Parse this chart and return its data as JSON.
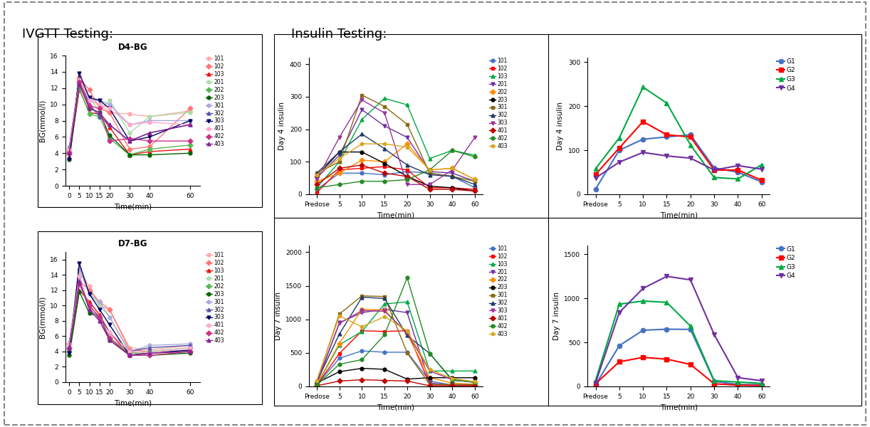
{
  "ivgtt_timepoints": [
    0,
    5,
    10,
    15,
    20,
    30,
    40,
    60
  ],
  "insulin_timepoints_labels": [
    "Predose",
    "5",
    "10",
    "15",
    "20",
    "30",
    "40",
    "60"
  ],
  "insulin_timepoints": [
    0,
    1,
    2,
    3,
    4,
    5,
    6,
    7
  ],
  "d4_bg": {
    "101": [
      3.8,
      13.5,
      10.5,
      10.0,
      9.0,
      8.8,
      8.5,
      9.2
    ],
    "102": [
      4.2,
      13.2,
      11.8,
      9.5,
      9.0,
      4.5,
      4.8,
      9.5
    ],
    "103": [
      3.5,
      11.8,
      9.0,
      8.8,
      7.2,
      3.8,
      4.2,
      4.5
    ],
    "201": [
      4.5,
      12.2,
      10.8,
      9.2,
      10.5,
      6.5,
      8.5,
      9.0
    ],
    "202": [
      4.0,
      12.0,
      8.8,
      8.5,
      5.8,
      3.8,
      4.5,
      5.0
    ],
    "203": [
      3.2,
      12.5,
      9.5,
      9.0,
      6.2,
      3.8,
      3.8,
      4.0
    ],
    "301": [
      4.5,
      13.0,
      10.5,
      10.5,
      10.0,
      7.5,
      8.0,
      8.0
    ],
    "302": [
      4.8,
      13.2,
      10.0,
      8.5,
      7.5,
      5.5,
      6.5,
      7.5
    ],
    "303": [
      3.2,
      13.8,
      10.8,
      10.5,
      9.5,
      5.5,
      6.0,
      8.0
    ],
    "401": [
      4.5,
      13.0,
      10.5,
      10.0,
      9.5,
      7.5,
      7.8,
      7.5
    ],
    "402": [
      4.0,
      12.8,
      9.8,
      9.5,
      5.5,
      5.8,
      5.5,
      5.5
    ],
    "403": [
      4.0,
      12.5,
      9.5,
      9.0,
      7.5,
      5.5,
      6.5,
      7.5
    ]
  },
  "d7_bg": {
    "101": [
      4.2,
      14.5,
      12.5,
      10.0,
      9.5,
      4.5,
      4.2,
      4.8
    ],
    "102": [
      5.0,
      13.2,
      12.0,
      10.5,
      9.5,
      4.2,
      4.0,
      4.5
    ],
    "103": [
      4.2,
      12.0,
      10.5,
      8.8,
      6.5,
      3.5,
      3.8,
      4.0
    ],
    "201": [
      4.8,
      14.8,
      11.5,
      10.0,
      8.5,
      3.8,
      4.0,
      4.5
    ],
    "202": [
      4.0,
      13.0,
      9.5,
      8.5,
      5.8,
      3.8,
      3.8,
      4.0
    ],
    "203": [
      3.5,
      11.8,
      9.0,
      8.5,
      5.5,
      3.5,
      3.5,
      3.8
    ],
    "301": [
      5.0,
      14.8,
      11.5,
      10.5,
      8.5,
      4.0,
      4.8,
      5.0
    ],
    "302": [
      5.2,
      13.8,
      9.5,
      8.5,
      6.5,
      4.0,
      4.5,
      4.8
    ],
    "303": [
      3.8,
      15.5,
      11.5,
      9.5,
      7.5,
      3.5,
      3.8,
      4.2
    ],
    "401": [
      5.0,
      13.8,
      9.8,
      8.0,
      6.5,
      4.0,
      3.8,
      4.5
    ],
    "402": [
      4.5,
      12.8,
      10.0,
      8.5,
      5.8,
      3.5,
      3.5,
      4.0
    ],
    "403": [
      4.5,
      13.2,
      9.5,
      8.0,
      5.5,
      3.5,
      3.8,
      4.0
    ]
  },
  "day4_insulin_individual": {
    "101": [
      15,
      65,
      65,
      60,
      70,
      65,
      55,
      20
    ],
    "102": [
      5,
      75,
      80,
      85,
      75,
      20,
      20,
      15
    ],
    "103": [
      20,
      100,
      230,
      295,
      275,
      110,
      135,
      120
    ],
    "201": [
      50,
      120,
      260,
      210,
      175,
      70,
      65,
      40
    ],
    "202": [
      40,
      65,
      105,
      100,
      155,
      75,
      80,
      45
    ],
    "203": [
      55,
      130,
      130,
      95,
      55,
      25,
      20,
      10
    ],
    "301": [
      65,
      100,
      305,
      270,
      215,
      65,
      55,
      40
    ],
    "302": [
      65,
      130,
      185,
      140,
      90,
      60,
      55,
      30
    ],
    "303": [
      45,
      175,
      290,
      250,
      30,
      30,
      75,
      175
    ],
    "401": [
      30,
      80,
      90,
      65,
      55,
      15,
      15,
      10
    ],
    "402": [
      20,
      30,
      40,
      40,
      45,
      75,
      135,
      115
    ],
    "403": [
      60,
      110,
      155,
      155,
      145,
      75,
      80,
      45
    ]
  },
  "day4_insulin_group": {
    "G1": [
      12,
      100,
      125,
      130,
      135,
      60,
      50,
      28
    ],
    "G2": [
      45,
      105,
      165,
      135,
      130,
      55,
      55,
      32
    ],
    "G3": [
      58,
      128,
      243,
      207,
      112,
      38,
      35,
      67
    ],
    "G4": [
      37,
      73,
      95,
      87,
      82,
      55,
      65,
      57
    ]
  },
  "day7_insulin_individual": {
    "101": [
      20,
      420,
      530,
      510,
      510,
      80,
      20,
      20
    ],
    "102": [
      20,
      490,
      830,
      820,
      830,
      30,
      20,
      20
    ],
    "103": [
      20,
      620,
      820,
      1230,
      1260,
      230,
      230,
      230
    ],
    "201": [
      30,
      950,
      1100,
      1150,
      1100,
      50,
      20,
      30
    ],
    "202": [
      30,
      640,
      1150,
      1140,
      780,
      130,
      50,
      30
    ],
    "203": [
      50,
      220,
      270,
      255,
      110,
      130,
      130,
      130
    ],
    "301": [
      70,
      1080,
      1350,
      1340,
      500,
      30,
      30,
      30
    ],
    "302": [
      70,
      780,
      1330,
      1310,
      760,
      490,
      90,
      70
    ],
    "303": [
      60,
      940,
      1130,
      1120,
      800,
      230,
      100,
      60
    ],
    "401": [
      10,
      80,
      100,
      90,
      80,
      10,
      10,
      10
    ],
    "402": [
      20,
      330,
      400,
      770,
      1620,
      490,
      100,
      60
    ],
    "403": [
      90,
      1050,
      890,
      1040,
      830,
      250,
      120,
      70
    ]
  },
  "day7_insulin_group": {
    "G1": [
      20,
      463,
      638,
      650,
      648,
      58,
      22,
      20
    ],
    "G2": [
      30,
      280,
      330,
      310,
      250,
      30,
      15,
      10
    ],
    "G3": [
      68,
      934,
      970,
      955,
      685,
      65,
      50,
      35
    ],
    "G4": [
      40,
      840,
      1113,
      1250,
      1210,
      590,
      100,
      65
    ]
  },
  "individual_colors": {
    "101": "#4472C4",
    "102": "#FF0000",
    "103": "#00AA44",
    "201": "#7030A0",
    "202": "#FF8C00",
    "203": "#000000",
    "301": "#8B6914",
    "302": "#1F3864",
    "303": "#993399",
    "401": "#C00000",
    "402": "#228B22",
    "403": "#DAA520"
  },
  "individual_markers": {
    "101": "o",
    "102": "s",
    "103": "^",
    "201": "v",
    "202": "D",
    "203": "o",
    "301": "s",
    "302": "^",
    "303": "v",
    "401": "D",
    "402": "o",
    "403": "p"
  },
  "group_colors": {
    "G1": "#4472C4",
    "G2": "#FF0000",
    "G3": "#00AA44",
    "G4": "#7030A0"
  },
  "group_markers": {
    "G1": "o",
    "G2": "s",
    "G3": "^",
    "G4": "v"
  },
  "ivgtt_animal_colors": {
    "101": "#FFAAAA",
    "102": "#FF7777",
    "103": "#EE1111",
    "201": "#AADDAA",
    "202": "#55BB55",
    "203": "#006600",
    "301": "#AAAADD",
    "302": "#5555AA",
    "303": "#000066",
    "401": "#FFAACC",
    "402": "#CC3388",
    "403": "#882299"
  },
  "ivgtt_animal_markers": {
    "101": "o",
    "102": "D",
    "103": "^",
    "201": "o",
    "202": "D",
    "203": "o",
    "301": "o",
    "302": "^",
    "303": "v",
    "401": "o",
    "402": "D",
    "403": "^"
  }
}
